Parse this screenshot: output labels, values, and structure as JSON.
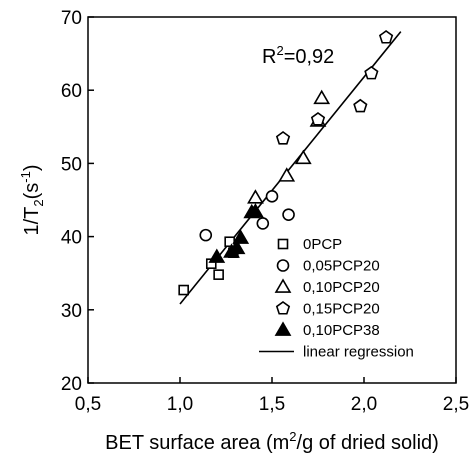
{
  "chart_data": {
    "type": "scatter",
    "xlabel": {
      "pre": "BET surface area (m",
      "sup": "2",
      "post": "/g of dried solid)"
    },
    "ylabel": {
      "pre": "1/T",
      "sub": "2",
      "mid": "(s",
      "sup": "-1",
      "post": ")"
    },
    "annotation": {
      "pre": "R",
      "sup": "2",
      "post": "=0,92"
    },
    "xlim": [
      0.5,
      2.5
    ],
    "ylim": [
      20,
      70
    ],
    "xticks": [
      0.5,
      1.0,
      1.5,
      2.0,
      2.5
    ],
    "xtick_labels": [
      "0,5",
      "1,0",
      "1,5",
      "2,0",
      "2,5"
    ],
    "yticks": [
      20,
      30,
      40,
      50,
      60,
      70
    ],
    "ytick_labels": [
      "20",
      "30",
      "40",
      "50",
      "60",
      "70"
    ],
    "grid": false,
    "legend_position": "bottom-right",
    "series": [
      {
        "name": "0PCP",
        "marker": "square-open",
        "x": [
          1.02,
          1.17,
          1.21,
          1.27,
          1.29
        ],
        "y": [
          32.7,
          36.3,
          34.8,
          39.3,
          37.8
        ]
      },
      {
        "name": "0,05PCP20",
        "marker": "circle-open",
        "x": [
          1.14,
          1.45,
          1.5,
          1.59
        ],
        "y": [
          40.2,
          41.8,
          45.5,
          43.0
        ]
      },
      {
        "name": "0,10PCP20",
        "marker": "triangle-open",
        "x": [
          1.41,
          1.58,
          1.67,
          1.75,
          1.77
        ],
        "y": [
          45.3,
          48.3,
          50.7,
          55.8,
          58.9
        ]
      },
      {
        "name": "0,15PCP20",
        "marker": "pentagon-open",
        "x": [
          1.56,
          1.75,
          1.98,
          2.04,
          2.12
        ],
        "y": [
          53.4,
          56.0,
          57.8,
          62.3,
          67.2
        ]
      },
      {
        "name": "0,10PCP38",
        "marker": "triangle-filled",
        "x": [
          1.2,
          1.28,
          1.31,
          1.33,
          1.39,
          1.41
        ],
        "y": [
          37.2,
          37.9,
          38.4,
          39.8,
          43.3,
          43.4
        ]
      }
    ],
    "regression": {
      "name": "linear regression",
      "x": [
        1.0,
        2.2
      ],
      "y": [
        30.8,
        68.0
      ]
    }
  }
}
